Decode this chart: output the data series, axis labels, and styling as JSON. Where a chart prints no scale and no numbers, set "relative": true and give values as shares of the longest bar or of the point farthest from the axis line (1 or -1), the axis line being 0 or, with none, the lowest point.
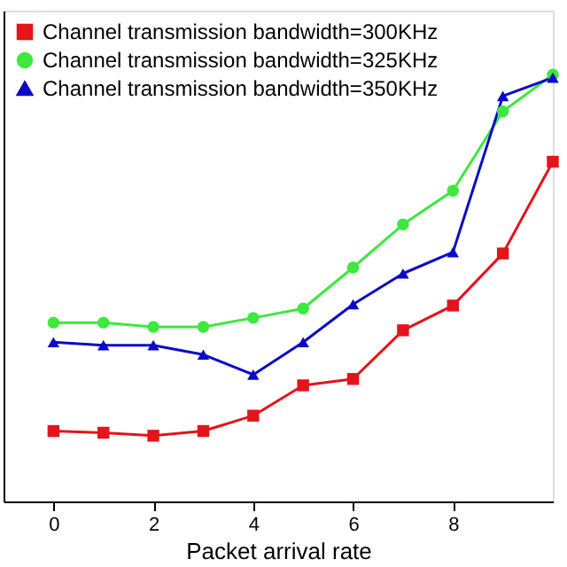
{
  "chart_data": {
    "type": "line",
    "xlabel": "Packet arrival rate",
    "relative": true,
    "x": [
      0,
      1,
      2,
      3,
      4,
      5,
      6,
      7,
      8,
      9,
      10
    ],
    "series": [
      {
        "name": "Channel transmission bandwidth=300KHz",
        "color": "#e3141b",
        "marker": "square",
        "values": [
          0.165,
          0.161,
          0.154,
          0.165,
          0.201,
          0.272,
          0.287,
          0.401,
          0.459,
          0.581,
          0.796
        ]
      },
      {
        "name": "Channel transmission bandwidth=325KHz",
        "color": "#3ee83e",
        "marker": "circle",
        "values": [
          0.419,
          0.419,
          0.409,
          0.409,
          0.43,
          0.452,
          0.548,
          0.649,
          0.728,
          0.914,
          1
        ]
      },
      {
        "name": "Channel transmission bandwidth=350KHz",
        "color": "#0a0ac8",
        "marker": "triangle",
        "values": [
          0.373,
          0.366,
          0.366,
          0.344,
          0.297,
          0.373,
          0.462,
          0.534,
          0.584,
          0.95,
          0.993
        ]
      }
    ],
    "xlim": [
      -1,
      10
    ],
    "xticks": [
      0,
      2,
      4,
      6,
      8
    ],
    "legend": "top left",
    "line_style": "solid"
  }
}
